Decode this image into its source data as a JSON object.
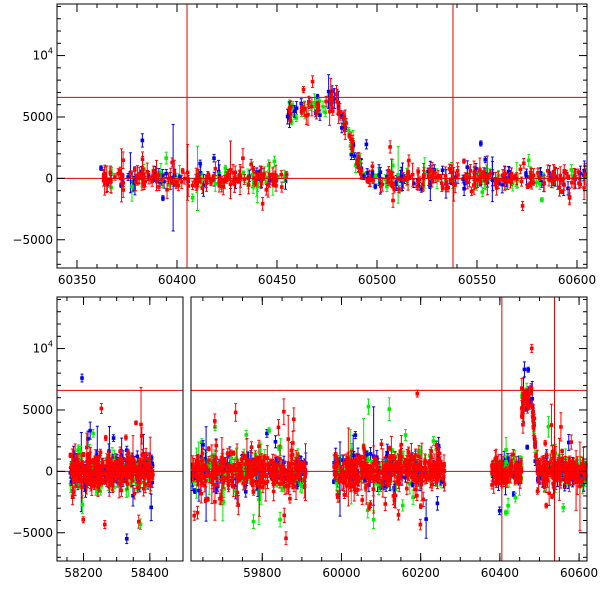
{
  "chart_data": [
    {
      "type": "scatter",
      "panel": "top",
      "xlim": [
        60340,
        60605
      ],
      "ylim": [
        -7300,
        14200
      ],
      "xticks": [
        60350,
        60400,
        60450,
        60500,
        60550,
        60600
      ],
      "xtick_labels": [
        "60350",
        "60400",
        "60450",
        "60500",
        "60550",
        "60600"
      ],
      "yticks": [
        -5000,
        0,
        5000,
        10000
      ],
      "ytick_labels": [
        {
          "base": "−5000"
        },
        {
          "base": "0"
        },
        {
          "base": "5000"
        },
        {
          "base": "10",
          "sup": "4"
        }
      ],
      "grid": false,
      "hlines": [
        0,
        6600
      ],
      "vlines": [
        60405,
        60538
      ],
      "line_color": "#e00000",
      "series_colors": {
        "red": "#ff0000",
        "green": "#00ee00",
        "blue": "#0000ee"
      },
      "note": "Light curve with error bars; points clustered near 0 with an outburst peaking near x=60470-60480 at y~6000-7500."
    },
    {
      "type": "scatter",
      "panel": "bottom",
      "broken_axis": true,
      "segments": [
        {
          "xlim": [
            58120,
            58500
          ],
          "xticks": [
            58200,
            58400
          ],
          "xtick_labels": [
            "58200",
            "58400"
          ]
        },
        {
          "xlim": [
            59620,
            60620
          ],
          "xticks": [
            59800,
            60000,
            60200,
            60400,
            60600
          ],
          "xtick_labels": [
            "59800",
            "60000",
            "60200",
            "60400",
            "60600"
          ]
        }
      ],
      "ylim": [
        -7300,
        14200
      ],
      "yticks": [
        -5000,
        0,
        5000,
        10000
      ],
      "ytick_labels": [
        {
          "base": "−5000"
        },
        {
          "base": "0"
        },
        {
          "base": "5000"
        },
        {
          "base": "10",
          "sup": "4"
        }
      ],
      "grid": false,
      "hlines": [
        0,
        6600
      ],
      "vlines": [
        60405,
        60538
      ],
      "line_color": "#e00000",
      "series_colors": {
        "red": "#ff0000",
        "green": "#00ee00",
        "blue": "#0000ee"
      },
      "data_windows": [
        [
          58160,
          58410
        ],
        [
          59620,
          59910
        ],
        [
          59980,
          60260
        ],
        [
          60380,
          60620
        ]
      ]
    }
  ]
}
